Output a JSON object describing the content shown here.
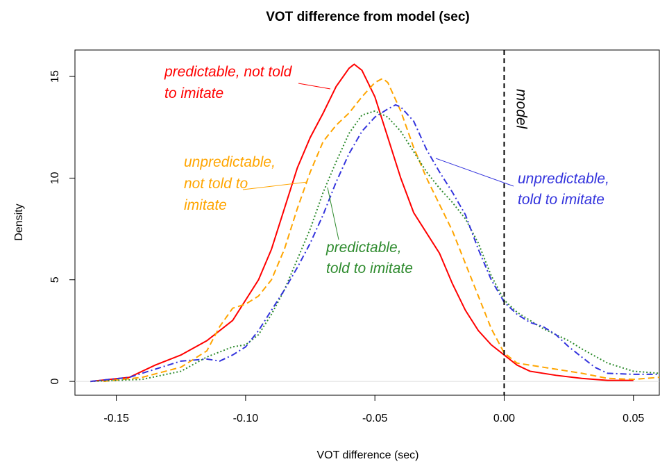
{
  "chart_data": {
    "type": "line",
    "title": "VOT difference from model (sec)",
    "x_label": "VOT difference (sec)",
    "y_label": "Density",
    "xlim": [
      -0.166,
      0.06
    ],
    "ylim": [
      -0.68,
      16.3
    ],
    "xticks": [
      -0.15,
      -0.1,
      -0.05,
      0.0,
      0.05
    ],
    "xtick_labels": [
      "-0.15",
      "-0.10",
      "-0.05",
      "0.00",
      "0.05"
    ],
    "yticks": [
      0,
      5,
      10,
      15
    ],
    "vline": {
      "value": 0,
      "label": "model"
    },
    "series": [
      {
        "name": "predictable, not told to imitate",
        "color": "#ff0000",
        "style": "solid",
        "x": [
          -0.16,
          -0.145,
          -0.135,
          -0.125,
          -0.115,
          -0.105,
          -0.095,
          -0.09,
          -0.085,
          -0.08,
          -0.075,
          -0.07,
          -0.065,
          -0.06,
          -0.058,
          -0.055,
          -0.05,
          -0.045,
          -0.04,
          -0.035,
          -0.03,
          -0.025,
          -0.02,
          -0.015,
          -0.01,
          -0.005,
          0,
          0.005,
          0.01,
          0.02,
          0.03,
          0.04,
          0.05
        ],
        "values": [
          0,
          0.2,
          0.8,
          1.3,
          2.0,
          3.0,
          5.0,
          6.5,
          8.5,
          10.5,
          12,
          13.2,
          14.5,
          15.4,
          15.6,
          15.3,
          14,
          12,
          10,
          8.3,
          7.3,
          6.3,
          4.8,
          3.5,
          2.5,
          1.8,
          1.3,
          0.8,
          0.5,
          0.3,
          0.15,
          0.05,
          0.05
        ]
      },
      {
        "name": "unpredictable, not told to imitate",
        "color": "#ffa500",
        "style": "dashed",
        "x": [
          -0.155,
          -0.14,
          -0.125,
          -0.115,
          -0.11,
          -0.105,
          -0.1,
          -0.095,
          -0.09,
          -0.085,
          -0.08,
          -0.075,
          -0.07,
          -0.065,
          -0.06,
          -0.055,
          -0.05,
          -0.047,
          -0.045,
          -0.04,
          -0.035,
          -0.03,
          -0.025,
          -0.02,
          -0.015,
          -0.01,
          -0.005,
          0,
          0.005,
          0.01,
          0.02,
          0.03,
          0.04,
          0.05,
          0.06
        ],
        "values": [
          0,
          0.2,
          0.7,
          1.5,
          2.7,
          3.6,
          3.8,
          4.2,
          5,
          6.5,
          8.5,
          10.3,
          11.8,
          12.6,
          13.2,
          14,
          14.7,
          14.9,
          14.7,
          13.3,
          11.5,
          10,
          8.7,
          7.4,
          5.8,
          4.2,
          2.6,
          1.4,
          0.9,
          0.8,
          0.6,
          0.4,
          0.15,
          0.1,
          0.2
        ]
      },
      {
        "name": "predictable, told to imitate",
        "color": "#2e8b2e",
        "style": "dotted",
        "x": [
          -0.16,
          -0.14,
          -0.125,
          -0.115,
          -0.105,
          -0.1,
          -0.095,
          -0.09,
          -0.085,
          -0.08,
          -0.075,
          -0.07,
          -0.065,
          -0.06,
          -0.055,
          -0.05,
          -0.045,
          -0.04,
          -0.035,
          -0.03,
          -0.025,
          -0.02,
          -0.015,
          -0.01,
          -0.005,
          0,
          0.005,
          0.01,
          0.015,
          0.02,
          0.025,
          0.03,
          0.04,
          0.05,
          0.06
        ],
        "values": [
          0,
          0.1,
          0.5,
          1.2,
          1.7,
          1.8,
          2.3,
          3.3,
          4.5,
          6,
          7.5,
          9.3,
          10.8,
          12.2,
          13.1,
          13.3,
          13,
          12.3,
          11.3,
          10.3,
          9.5,
          8.8,
          8.0,
          6.8,
          5.2,
          4.0,
          3.4,
          3.0,
          2.6,
          2.3,
          2.0,
          1.6,
          0.9,
          0.5,
          0.4
        ]
      },
      {
        "name": "unpredictable, told to imitate",
        "color": "#3333dd",
        "style": "dashdot",
        "x": [
          -0.16,
          -0.145,
          -0.135,
          -0.125,
          -0.115,
          -0.11,
          -0.105,
          -0.1,
          -0.095,
          -0.09,
          -0.085,
          -0.08,
          -0.075,
          -0.07,
          -0.065,
          -0.06,
          -0.055,
          -0.05,
          -0.045,
          -0.042,
          -0.04,
          -0.035,
          -0.03,
          -0.025,
          -0.02,
          -0.015,
          -0.01,
          -0.005,
          0,
          0.005,
          0.01,
          0.015,
          0.02,
          0.025,
          0.03,
          0.035,
          0.04,
          0.05,
          0.06
        ],
        "values": [
          0,
          0.2,
          0.6,
          1.0,
          1.1,
          1.0,
          1.3,
          1.7,
          2.5,
          3.5,
          4.5,
          5.6,
          6.8,
          8.2,
          9.8,
          11.2,
          12.3,
          13,
          13.4,
          13.6,
          13.5,
          12.8,
          11.4,
          10.3,
          9.3,
          8.2,
          6.5,
          5.0,
          3.9,
          3.3,
          2.9,
          2.7,
          2.3,
          1.7,
          1.2,
          0.7,
          0.4,
          0.35,
          0.35
        ]
      }
    ],
    "annotations": [
      {
        "lines": [
          "predictable,  not told",
          "to imitate"
        ],
        "color": "#ff0000"
      },
      {
        "lines": [
          "unpredictable,",
          "not told to",
          "imitate"
        ],
        "color": "#ffa500"
      },
      {
        "lines": [
          "predictable,",
          "told to imitate"
        ],
        "color": "#2e8b2e"
      },
      {
        "lines": [
          "unpredictable,",
          "told to imitate"
        ],
        "color": "#3333dd"
      }
    ]
  }
}
